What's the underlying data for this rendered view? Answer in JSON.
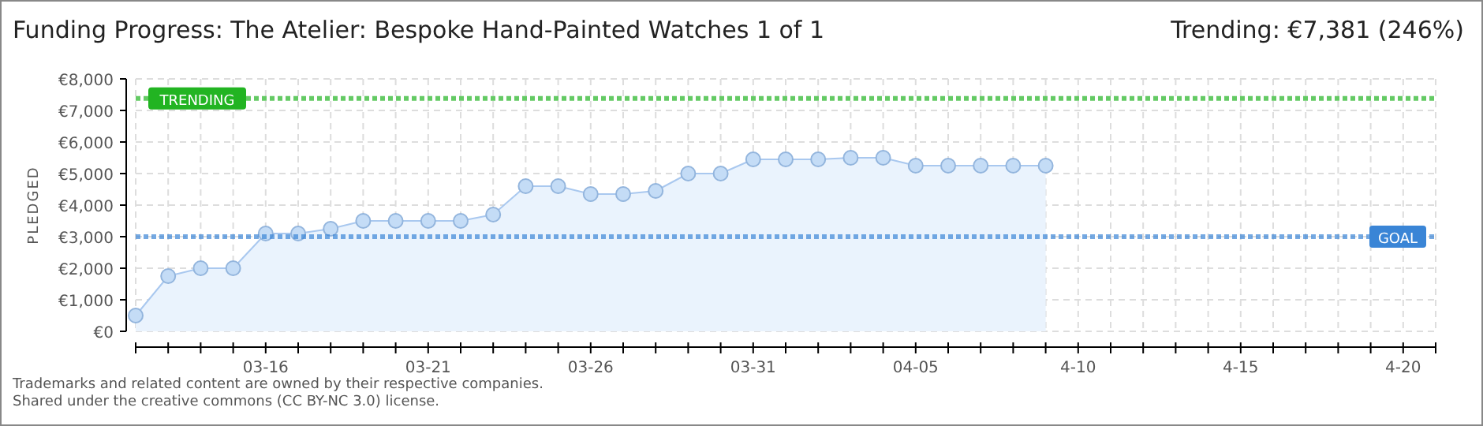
{
  "chart_data": {
    "type": "area",
    "title": "Funding Progress: The Atelier: Bespoke Hand-Painted Watches 1 of 1",
    "ylabel": "PLEDGED",
    "annotations": [
      "Trending: €7,381 (246%)",
      "Trademarks and related content are owned by their respective companies.",
      "Shared under the creative commons (CC BY-NC 3.0) license."
    ],
    "x": [
      "--03-12",
      "--03-13",
      "--03-14",
      "--03-15",
      "--03-16",
      "--03-17",
      "--03-18",
      "--03-19",
      "--03-20",
      "--03-21",
      "--03-22",
      "--03-23",
      "--03-24",
      "--03-25",
      "--03-26",
      "--03-27",
      "--03-28",
      "--03-29",
      "--03-30",
      "--03-31",
      "--04-01",
      "--04-02",
      "--04-03",
      "--04-04",
      "--04-05",
      "--04-06",
      "--04-07",
      "--04-08",
      "--04-09"
    ],
    "series": [
      {
        "color": "#a9c8ef",
        "values": [
          500,
          1750,
          2000,
          2000,
          3100,
          3100,
          3250,
          3500,
          3500,
          3500,
          3500,
          3700,
          4600,
          4600,
          4350,
          4350,
          4450,
          5000,
          5000,
          5450,
          5450,
          5450,
          5500,
          5500,
          5250,
          5250,
          5250,
          5250,
          5250
        ]
      }
    ],
    "xlim": [
      "--03-12",
      "--04-21"
    ],
    "xticks": [
      {
        "value": "--03-12",
        "label": null
      },
      {
        "value": "--03-13",
        "label": null
      },
      {
        "value": "--03-14",
        "label": null
      },
      {
        "value": "--03-15",
        "label": null
      },
      {
        "value": "--03-16",
        "label": "03-16"
      },
      {
        "value": "--03-17",
        "label": null
      },
      {
        "value": "--03-18",
        "label": null
      },
      {
        "value": "--03-19",
        "label": null
      },
      {
        "value": "--03-20",
        "label": null
      },
      {
        "value": "--03-21",
        "label": "03-21"
      },
      {
        "value": "--03-22",
        "label": null
      },
      {
        "value": "--03-23",
        "label": null
      },
      {
        "value": "--03-24",
        "label": null
      },
      {
        "value": "--03-25",
        "label": null
      },
      {
        "value": "--03-26",
        "label": "03-26"
      },
      {
        "value": "--03-27",
        "label": null
      },
      {
        "value": "--03-28",
        "label": null
      },
      {
        "value": "--03-29",
        "label": null
      },
      {
        "value": "--03-30",
        "label": null
      },
      {
        "value": "--03-31",
        "label": "03-31"
      },
      {
        "value": "--04-01",
        "label": null
      },
      {
        "value": "--04-02",
        "label": null
      },
      {
        "value": "--04-03",
        "label": null
      },
      {
        "value": "--04-04",
        "label": null
      },
      {
        "value": "--04-05",
        "label": "04-05"
      },
      {
        "value": "--04-06",
        "label": null
      },
      {
        "value": "--04-07",
        "label": null
      },
      {
        "value": "--04-08",
        "label": null
      },
      {
        "value": "--04-09",
        "label": null
      },
      {
        "value": "--04-10",
        "label": "4-10"
      },
      {
        "value": "--04-11",
        "label": null
      },
      {
        "value": "--04-12",
        "label": null
      },
      {
        "value": "--04-13",
        "label": null
      },
      {
        "value": "--04-14",
        "label": null
      },
      {
        "value": "--04-15",
        "label": "4-15"
      },
      {
        "value": "--04-16",
        "label": null
      },
      {
        "value": "--04-17",
        "label": null
      },
      {
        "value": "--04-18",
        "label": null
      },
      {
        "value": "--04-19",
        "label": null
      },
      {
        "value": "--04-20",
        "label": "4-20"
      },
      {
        "value": "--04-21",
        "label": null
      }
    ],
    "ylim": [
      0,
      8000
    ],
    "yticks": [
      {
        "value": 0,
        "label": "€0"
      },
      {
        "value": 1000,
        "label": "€1,000"
      },
      {
        "value": 2000,
        "label": "€2,000"
      },
      {
        "value": 3000,
        "label": "€3,000"
      },
      {
        "value": 4000,
        "label": "€4,000"
      },
      {
        "value": 5000,
        "label": "€5,000"
      },
      {
        "value": 6000,
        "label": "€6,000"
      },
      {
        "value": 7000,
        "label": "€7,000"
      },
      {
        "value": 8000,
        "label": "€8,000"
      }
    ],
    "ref_lines": [
      {
        "axis": "y",
        "value": 7381,
        "label": "TRENDING",
        "color": "#22b422"
      },
      {
        "axis": "y",
        "value": 3000,
        "label": "GOAL",
        "color": "#3a85d6"
      }
    ],
    "grid": true,
    "marker": "circle"
  }
}
